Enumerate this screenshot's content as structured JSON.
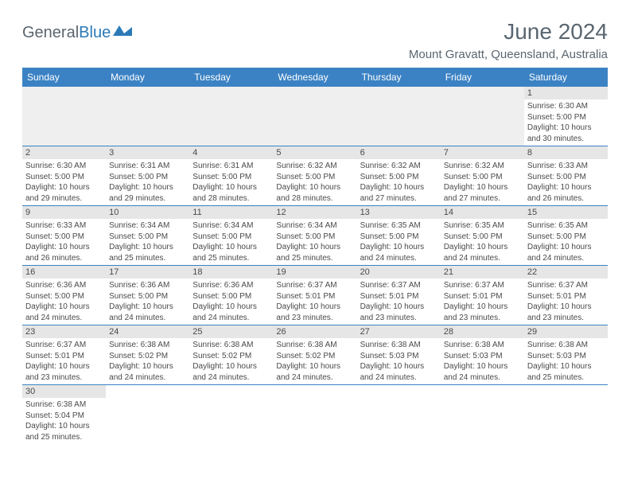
{
  "logo": {
    "general": "General",
    "blue": "Blue"
  },
  "title": "June 2024",
  "location": "Mount Gravatt, Queensland, Australia",
  "colors": {
    "header_bg": "#3b82c4",
    "header_text": "#ffffff",
    "daynum_bg": "#e6e6e6",
    "border": "#3b82c4",
    "text": "#4a4a4a",
    "logo_general": "#5a6670",
    "logo_blue": "#2a7ab8"
  },
  "day_names": [
    "Sunday",
    "Monday",
    "Tuesday",
    "Wednesday",
    "Thursday",
    "Friday",
    "Saturday"
  ],
  "weeks": [
    [
      null,
      null,
      null,
      null,
      null,
      null,
      {
        "n": "1",
        "sunrise": "Sunrise: 6:30 AM",
        "sunset": "Sunset: 5:00 PM",
        "d1": "Daylight: 10 hours",
        "d2": "and 30 minutes."
      }
    ],
    [
      {
        "n": "2",
        "sunrise": "Sunrise: 6:30 AM",
        "sunset": "Sunset: 5:00 PM",
        "d1": "Daylight: 10 hours",
        "d2": "and 29 minutes."
      },
      {
        "n": "3",
        "sunrise": "Sunrise: 6:31 AM",
        "sunset": "Sunset: 5:00 PM",
        "d1": "Daylight: 10 hours",
        "d2": "and 29 minutes."
      },
      {
        "n": "4",
        "sunrise": "Sunrise: 6:31 AM",
        "sunset": "Sunset: 5:00 PM",
        "d1": "Daylight: 10 hours",
        "d2": "and 28 minutes."
      },
      {
        "n": "5",
        "sunrise": "Sunrise: 6:32 AM",
        "sunset": "Sunset: 5:00 PM",
        "d1": "Daylight: 10 hours",
        "d2": "and 28 minutes."
      },
      {
        "n": "6",
        "sunrise": "Sunrise: 6:32 AM",
        "sunset": "Sunset: 5:00 PM",
        "d1": "Daylight: 10 hours",
        "d2": "and 27 minutes."
      },
      {
        "n": "7",
        "sunrise": "Sunrise: 6:32 AM",
        "sunset": "Sunset: 5:00 PM",
        "d1": "Daylight: 10 hours",
        "d2": "and 27 minutes."
      },
      {
        "n": "8",
        "sunrise": "Sunrise: 6:33 AM",
        "sunset": "Sunset: 5:00 PM",
        "d1": "Daylight: 10 hours",
        "d2": "and 26 minutes."
      }
    ],
    [
      {
        "n": "9",
        "sunrise": "Sunrise: 6:33 AM",
        "sunset": "Sunset: 5:00 PM",
        "d1": "Daylight: 10 hours",
        "d2": "and 26 minutes."
      },
      {
        "n": "10",
        "sunrise": "Sunrise: 6:34 AM",
        "sunset": "Sunset: 5:00 PM",
        "d1": "Daylight: 10 hours",
        "d2": "and 25 minutes."
      },
      {
        "n": "11",
        "sunrise": "Sunrise: 6:34 AM",
        "sunset": "Sunset: 5:00 PM",
        "d1": "Daylight: 10 hours",
        "d2": "and 25 minutes."
      },
      {
        "n": "12",
        "sunrise": "Sunrise: 6:34 AM",
        "sunset": "Sunset: 5:00 PM",
        "d1": "Daylight: 10 hours",
        "d2": "and 25 minutes."
      },
      {
        "n": "13",
        "sunrise": "Sunrise: 6:35 AM",
        "sunset": "Sunset: 5:00 PM",
        "d1": "Daylight: 10 hours",
        "d2": "and 24 minutes."
      },
      {
        "n": "14",
        "sunrise": "Sunrise: 6:35 AM",
        "sunset": "Sunset: 5:00 PM",
        "d1": "Daylight: 10 hours",
        "d2": "and 24 minutes."
      },
      {
        "n": "15",
        "sunrise": "Sunrise: 6:35 AM",
        "sunset": "Sunset: 5:00 PM",
        "d1": "Daylight: 10 hours",
        "d2": "and 24 minutes."
      }
    ],
    [
      {
        "n": "16",
        "sunrise": "Sunrise: 6:36 AM",
        "sunset": "Sunset: 5:00 PM",
        "d1": "Daylight: 10 hours",
        "d2": "and 24 minutes."
      },
      {
        "n": "17",
        "sunrise": "Sunrise: 6:36 AM",
        "sunset": "Sunset: 5:00 PM",
        "d1": "Daylight: 10 hours",
        "d2": "and 24 minutes."
      },
      {
        "n": "18",
        "sunrise": "Sunrise: 6:36 AM",
        "sunset": "Sunset: 5:00 PM",
        "d1": "Daylight: 10 hours",
        "d2": "and 24 minutes."
      },
      {
        "n": "19",
        "sunrise": "Sunrise: 6:37 AM",
        "sunset": "Sunset: 5:01 PM",
        "d1": "Daylight: 10 hours",
        "d2": "and 23 minutes."
      },
      {
        "n": "20",
        "sunrise": "Sunrise: 6:37 AM",
        "sunset": "Sunset: 5:01 PM",
        "d1": "Daylight: 10 hours",
        "d2": "and 23 minutes."
      },
      {
        "n": "21",
        "sunrise": "Sunrise: 6:37 AM",
        "sunset": "Sunset: 5:01 PM",
        "d1": "Daylight: 10 hours",
        "d2": "and 23 minutes."
      },
      {
        "n": "22",
        "sunrise": "Sunrise: 6:37 AM",
        "sunset": "Sunset: 5:01 PM",
        "d1": "Daylight: 10 hours",
        "d2": "and 23 minutes."
      }
    ],
    [
      {
        "n": "23",
        "sunrise": "Sunrise: 6:37 AM",
        "sunset": "Sunset: 5:01 PM",
        "d1": "Daylight: 10 hours",
        "d2": "and 23 minutes."
      },
      {
        "n": "24",
        "sunrise": "Sunrise: 6:38 AM",
        "sunset": "Sunset: 5:02 PM",
        "d1": "Daylight: 10 hours",
        "d2": "and 24 minutes."
      },
      {
        "n": "25",
        "sunrise": "Sunrise: 6:38 AM",
        "sunset": "Sunset: 5:02 PM",
        "d1": "Daylight: 10 hours",
        "d2": "and 24 minutes."
      },
      {
        "n": "26",
        "sunrise": "Sunrise: 6:38 AM",
        "sunset": "Sunset: 5:02 PM",
        "d1": "Daylight: 10 hours",
        "d2": "and 24 minutes."
      },
      {
        "n": "27",
        "sunrise": "Sunrise: 6:38 AM",
        "sunset": "Sunset: 5:03 PM",
        "d1": "Daylight: 10 hours",
        "d2": "and 24 minutes."
      },
      {
        "n": "28",
        "sunrise": "Sunrise: 6:38 AM",
        "sunset": "Sunset: 5:03 PM",
        "d1": "Daylight: 10 hours",
        "d2": "and 24 minutes."
      },
      {
        "n": "29",
        "sunrise": "Sunrise: 6:38 AM",
        "sunset": "Sunset: 5:03 PM",
        "d1": "Daylight: 10 hours",
        "d2": "and 25 minutes."
      }
    ],
    [
      {
        "n": "30",
        "sunrise": "Sunrise: 6:38 AM",
        "sunset": "Sunset: 5:04 PM",
        "d1": "Daylight: 10 hours",
        "d2": "and 25 minutes."
      },
      null,
      null,
      null,
      null,
      null,
      null
    ]
  ]
}
